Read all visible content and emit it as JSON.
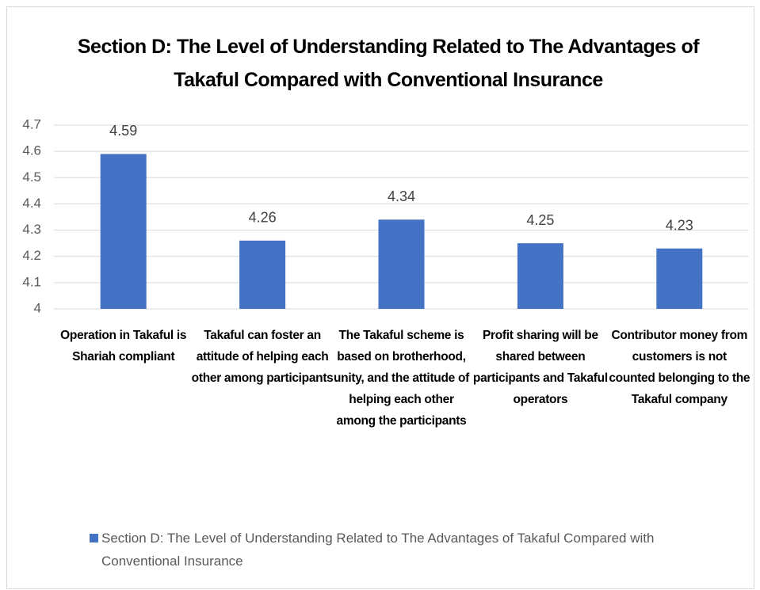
{
  "chart_data": {
    "type": "bar",
    "title": "Section D: The Level of Understanding Related to The Advantages of Takaful Compared with Conventional Insurance",
    "categories": [
      "Operation in Takaful is Shariah compliant",
      "Takaful can foster an attitude of helping each other among participants",
      "The Takaful scheme is based on brotherhood, unity, and the attitude of helping each other among the participants",
      "Profit sharing will be shared between participants and Takaful operators",
      "Contributor money from customers is not counted belonging to the Takaful company"
    ],
    "series": [
      {
        "name": "Section D: The Level of Understanding Related to The Advantages of Takaful Compared with Conventional Insurance",
        "color": "#4472c4",
        "values": [
          4.59,
          4.26,
          4.34,
          4.25,
          4.23
        ]
      }
    ],
    "ylim": [
      4,
      4.7
    ],
    "yticks": [
      4,
      4.1,
      4.2,
      4.3,
      4.4,
      4.5,
      4.6,
      4.7
    ],
    "grid": true,
    "legend": "bottom"
  }
}
